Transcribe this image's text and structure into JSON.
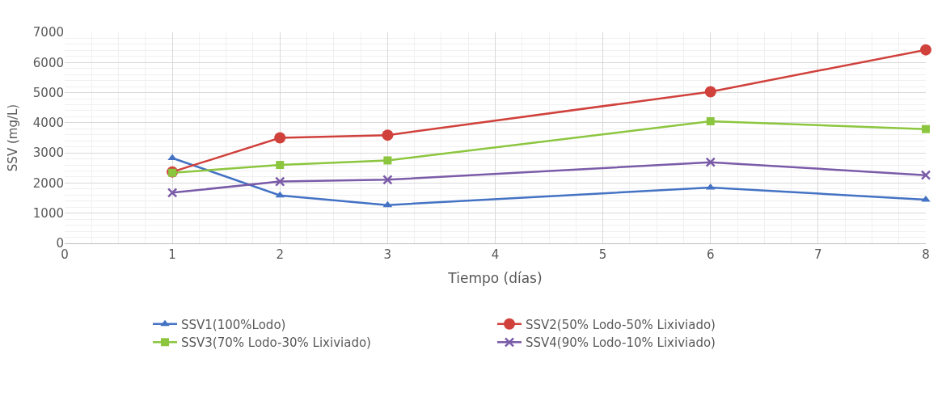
{
  "chart_data": {
    "type": "line",
    "xlabel": "Tiempo (días)",
    "ylabel": "SSV (mg/L)",
    "x": [
      1,
      2,
      3,
      6,
      8
    ],
    "series": [
      {
        "name": "SSV1(100%Lodo)",
        "color": "#4472c4",
        "marker": "triangle",
        "values": [
          2830,
          1590,
          1270,
          1850,
          1450
        ]
      },
      {
        "name": "SSV2(50% Lodo-50% Lixiviado)",
        "color": "#d0413c",
        "marker": "circle",
        "values": [
          2370,
          3500,
          3590,
          5030,
          6420
        ]
      },
      {
        "name": "SSV3(70% Lodo-30% Lixiviado)",
        "color": "#8cc63f",
        "marker": "square",
        "values": [
          2340,
          2600,
          2750,
          4050,
          3790
        ]
      },
      {
        "name": "SSV4(90% Lodo-10% Lixiviado)",
        "color": "#7a5ba8",
        "marker": "cross",
        "values": [
          1680,
          2050,
          2110,
          2690,
          2260
        ]
      }
    ],
    "xlim": [
      0,
      8
    ],
    "xticks": [
      0,
      1,
      2,
      3,
      4,
      5,
      6,
      7,
      8
    ],
    "ylim": [
      0,
      7000
    ],
    "yticks": [
      0,
      1000,
      2000,
      3000,
      4000,
      5000,
      6000,
      7000
    ],
    "grid": true,
    "legend": "bottom",
    "line_style": "solid"
  }
}
